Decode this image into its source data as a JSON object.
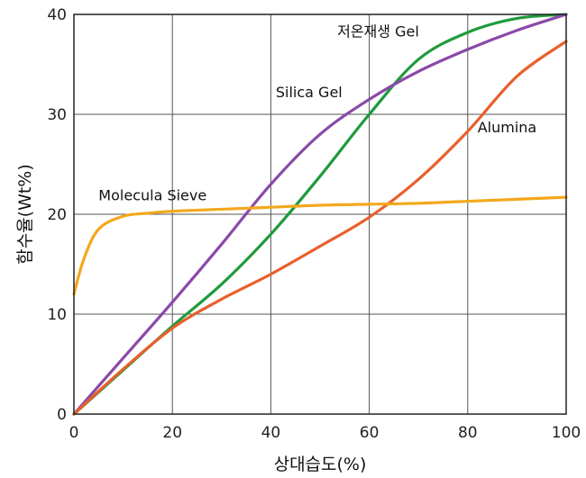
{
  "chart_data": {
    "type": "line",
    "xlabel": "상대습도(%)",
    "ylabel": "함수율(Wt%)",
    "xlim": [
      0,
      100
    ],
    "ylim": [
      0,
      40
    ],
    "x_ticks": [
      "0",
      "20",
      "40",
      "60",
      "80",
      "100"
    ],
    "y_ticks": [
      "0",
      "10",
      "20",
      "30",
      "40"
    ],
    "grid": true,
    "series": [
      {
        "name": "저온재생 Gel",
        "color": "#1f9a3c",
        "x": [
          0,
          10,
          20,
          30,
          40,
          50,
          60,
          70,
          80,
          90,
          100
        ],
        "y": [
          0,
          4.4,
          8.8,
          13,
          18,
          23.8,
          30,
          35.5,
          38.2,
          39.6,
          40
        ]
      },
      {
        "name": "Silica Gel",
        "color": "#8a4aa8",
        "x": [
          0,
          10,
          20,
          30,
          40,
          50,
          60,
          70,
          80,
          90,
          100
        ],
        "y": [
          0,
          5.6,
          11.2,
          17,
          23,
          28,
          31.5,
          34.3,
          36.5,
          38.4,
          40
        ]
      },
      {
        "name": "Alumina",
        "color": "#e8602c",
        "x": [
          0,
          10,
          20,
          30,
          40,
          50,
          60,
          70,
          80,
          90,
          100
        ],
        "y": [
          0,
          4.5,
          8.6,
          11.5,
          14,
          16.8,
          19.7,
          23.5,
          28.3,
          33.8,
          37.3
        ]
      },
      {
        "name": "Molecula Sieve",
        "color": "#f3a81c",
        "x": [
          0,
          2,
          5,
          10,
          15,
          20,
          30,
          40,
          50,
          60,
          70,
          80,
          90,
          100
        ],
        "y": [
          12,
          15.5,
          18.5,
          19.8,
          20.1,
          20.3,
          20.5,
          20.7,
          20.9,
          21,
          21.1,
          21.3,
          21.5,
          21.7
        ]
      }
    ]
  }
}
